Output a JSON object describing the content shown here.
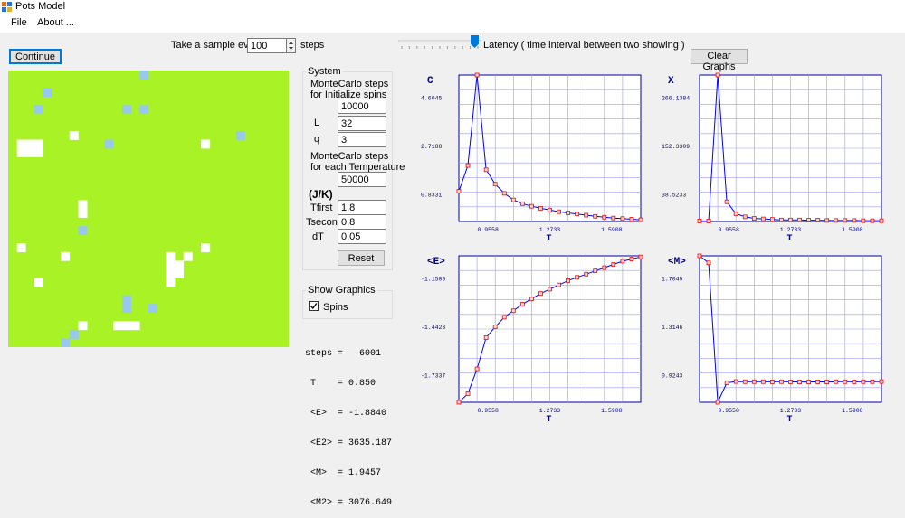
{
  "window": {
    "title": "Pots Model"
  },
  "menu": [
    {
      "label": "File"
    },
    {
      "label": "About ..."
    }
  ],
  "toolbar": {
    "sample_label": "Take a sample every",
    "sample_value": "100",
    "steps_label": "steps",
    "latency_label": "Latency ( time interval between two showing )",
    "latency_level": 0.38,
    "continue_label": "Continue",
    "clear_graphs_label": "Clear Graphs"
  },
  "lattice": {
    "L": 32,
    "colors": {
      "state0": "#a8f226",
      "state1": "#96c8f0",
      "state2": "#ffffff"
    },
    "cells1": [
      [
        15,
        0
      ],
      [
        13,
        4
      ],
      [
        15,
        4
      ],
      [
        8,
        18
      ],
      [
        13,
        26
      ],
      [
        13,
        27
      ],
      [
        7,
        30
      ],
      [
        6,
        31
      ],
      [
        4,
        2
      ],
      [
        3,
        4
      ],
      [
        26,
        7
      ],
      [
        16,
        27
      ],
      [
        12,
        33
      ],
      [
        11,
        8
      ]
    ],
    "cells2": [
      [
        1,
        8
      ],
      [
        1,
        9
      ],
      [
        2,
        8
      ],
      [
        2,
        9
      ],
      [
        3,
        8
      ],
      [
        3,
        9
      ],
      [
        1,
        20
      ],
      [
        3,
        24
      ],
      [
        6,
        21
      ],
      [
        7,
        7
      ],
      [
        8,
        15
      ],
      [
        8,
        16
      ],
      [
        8,
        29
      ],
      [
        12,
        29
      ],
      [
        13,
        29
      ],
      [
        14,
        29
      ],
      [
        18,
        21
      ],
      [
        18,
        22
      ],
      [
        18,
        23
      ],
      [
        19,
        22
      ],
      [
        20,
        21
      ],
      [
        18,
        24
      ],
      [
        19,
        23
      ],
      [
        22,
        8
      ],
      [
        22,
        20
      ]
    ]
  },
  "system": {
    "group_title": "System",
    "mc_init_label": "MonteCarlo steps\nfor Initialize spins",
    "mc_init_value": "10000",
    "L_label": "L",
    "L_value": "32",
    "q_label": "q",
    "q_value": "3",
    "mc_temp_label": "MonteCarlo steps\nfor each Temperature",
    "mc_temp_value": "50000",
    "jk_label": "(J/K)",
    "tfirst_label": "Tfirst",
    "tfirst_value": "1.8",
    "tsecond_label": "Tsecond",
    "tsecond_value": "0.8",
    "dt_label": "dT",
    "dt_value": "0.05",
    "reset_label": "Reset"
  },
  "graphics": {
    "group_title": "Show Graphics",
    "spins_label": "Spins",
    "spins_checked": true
  },
  "stats": [
    "steps =   6001",
    " T    = 0.850",
    " <E>  = -1.8840",
    " <E2> = 3635.187",
    " <M>  = 1.9457",
    " <M2> = 3076.649"
  ],
  "chart_data": [
    {
      "type": "line",
      "ylabel": "C",
      "xlabel": "T",
      "yticks": [
        "4.6045",
        "2.7188",
        "0.8331"
      ],
      "xticks": [
        "0.9558",
        "1.2733",
        "1.5908"
      ],
      "xlim": [
        0.8,
        1.8
      ],
      "ylim": [
        0.3,
        5.4
      ],
      "x": [
        0.8,
        0.85,
        0.9,
        0.95,
        1.0,
        1.05,
        1.1,
        1.15,
        1.2,
        1.25,
        1.3,
        1.35,
        1.4,
        1.45,
        1.5,
        1.55,
        1.6,
        1.65,
        1.7,
        1.75,
        1.8
      ],
      "y": [
        1.35,
        2.25,
        5.4,
        2.1,
        1.6,
        1.28,
        1.05,
        0.92,
        0.83,
        0.76,
        0.7,
        0.64,
        0.6,
        0.56,
        0.52,
        0.48,
        0.45,
        0.42,
        0.4,
        0.38,
        0.36
      ]
    },
    {
      "type": "line",
      "ylabel": "X",
      "xlabel": "T",
      "yticks": [
        "266.1384",
        "152.3309",
        "38.5233"
      ],
      "xticks": [
        "0.9558",
        "1.2733",
        "1.5908"
      ],
      "xlim": [
        0.8,
        1.8
      ],
      "ylim": [
        0,
        283
      ],
      "x": [
        0.8,
        0.85,
        0.9,
        0.95,
        1.0,
        1.05,
        1.1,
        1.15,
        1.2,
        1.25,
        1.3,
        1.35,
        1.4,
        1.45,
        1.5,
        1.55,
        1.6,
        1.65,
        1.7,
        1.75,
        1.8
      ],
      "y": [
        1,
        1,
        283,
        38,
        15,
        9,
        6,
        5,
        4,
        3,
        3,
        3,
        2.5,
        2.5,
        2,
        2,
        2,
        2,
        1.5,
        1.5,
        1.5
      ]
    },
    {
      "type": "line",
      "ylabel": "<E>",
      "xlabel": "T",
      "yticks": [
        "-1.1509",
        "-1.4423",
        "-1.7337"
      ],
      "xticks": [
        "0.9558",
        "1.2733",
        "1.5908"
      ],
      "xlim": [
        0.8,
        1.8
      ],
      "ylim": [
        -1.78,
        -1.1
      ],
      "x": [
        0.8,
        0.85,
        0.9,
        0.95,
        1.0,
        1.05,
        1.1,
        1.15,
        1.2,
        1.25,
        1.3,
        1.35,
        1.4,
        1.45,
        1.5,
        1.55,
        1.6,
        1.65,
        1.7,
        1.75,
        1.8
      ],
      "y": [
        -1.78,
        -1.74,
        -1.625,
        -1.48,
        -1.43,
        -1.385,
        -1.355,
        -1.325,
        -1.3,
        -1.275,
        -1.255,
        -1.235,
        -1.215,
        -1.2,
        -1.185,
        -1.17,
        -1.155,
        -1.14,
        -1.125,
        -1.115,
        -1.105
      ]
    },
    {
      "type": "line",
      "ylabel": "<M>",
      "xlabel": "T",
      "yticks": [
        "1.7049",
        "1.3146",
        "0.9243"
      ],
      "xticks": [
        "0.9558",
        "1.2733",
        "1.5908"
      ],
      "xlim": [
        0.8,
        1.8
      ],
      "ylim": [
        0.85,
        1.79
      ],
      "x": [
        0.8,
        0.85,
        0.9,
        0.95,
        1.0,
        1.05,
        1.1,
        1.15,
        1.2,
        1.25,
        1.3,
        1.35,
        1.4,
        1.45,
        1.5,
        1.55,
        1.6,
        1.65,
        1.7,
        1.75,
        1.8
      ],
      "y": [
        1.79,
        1.745,
        0.85,
        0.975,
        0.983,
        0.982,
        0.982,
        0.982,
        0.981,
        0.982,
        0.981,
        0.98,
        0.98,
        0.981,
        0.98,
        0.982,
        0.982,
        0.981,
        0.982,
        0.982,
        0.983
      ]
    }
  ]
}
